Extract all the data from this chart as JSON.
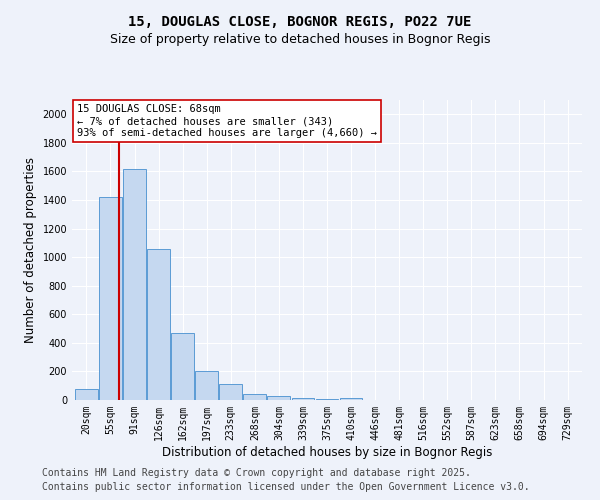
{
  "title1": "15, DOUGLAS CLOSE, BOGNOR REGIS, PO22 7UE",
  "title2": "Size of property relative to detached houses in Bognor Regis",
  "xlabel": "Distribution of detached houses by size in Bognor Regis",
  "ylabel": "Number of detached properties",
  "categories": [
    "20sqm",
    "55sqm",
    "91sqm",
    "126sqm",
    "162sqm",
    "197sqm",
    "233sqm",
    "268sqm",
    "304sqm",
    "339sqm",
    "375sqm",
    "410sqm",
    "446sqm",
    "481sqm",
    "516sqm",
    "552sqm",
    "587sqm",
    "623sqm",
    "658sqm",
    "694sqm",
    "729sqm"
  ],
  "values": [
    80,
    1420,
    1620,
    1060,
    470,
    205,
    110,
    45,
    30,
    15,
    10,
    15,
    0,
    0,
    0,
    0,
    0,
    0,
    0,
    0,
    0
  ],
  "bar_color": "#c5d8f0",
  "bar_edge_color": "#5b9bd5",
  "vline_x": 1.35,
  "vline_color": "#cc0000",
  "annotation_text": "15 DOUGLAS CLOSE: 68sqm\n← 7% of detached houses are smaller (343)\n93% of semi-detached houses are larger (4,660) →",
  "annotation_box_color": "#ffffff",
  "annotation_box_edge": "#cc0000",
  "ylim": [
    0,
    2100
  ],
  "yticks": [
    0,
    200,
    400,
    600,
    800,
    1000,
    1200,
    1400,
    1600,
    1800,
    2000
  ],
  "footer1": "Contains HM Land Registry data © Crown copyright and database right 2025.",
  "footer2": "Contains public sector information licensed under the Open Government Licence v3.0.",
  "bg_color": "#eef2fa",
  "plot_bg_color": "#eef2fa",
  "title_fontsize": 10,
  "subtitle_fontsize": 9,
  "tick_fontsize": 7,
  "axis_label_fontsize": 8.5,
  "footer_fontsize": 7,
  "annot_fontsize": 7.5
}
